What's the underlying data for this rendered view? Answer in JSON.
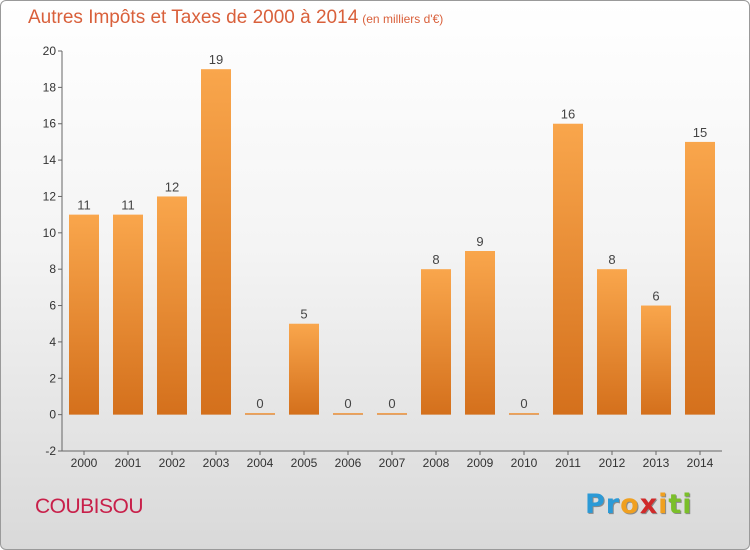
{
  "chart_data": {
    "type": "bar",
    "title": "Autres Impôts et Taxes de 2000 à 2014",
    "subtitle": "(en milliers d'€)",
    "categories": [
      "2000",
      "2001",
      "2002",
      "2003",
      "2004",
      "2005",
      "2006",
      "2007",
      "2008",
      "2009",
      "2010",
      "2011",
      "2012",
      "2013",
      "2014"
    ],
    "values": [
      11,
      11,
      12,
      19,
      0,
      5,
      0,
      0,
      8,
      9,
      0,
      16,
      8,
      6,
      15
    ],
    "ylim": [
      -2,
      20
    ],
    "yticks": [
      -2,
      0,
      2,
      4,
      6,
      8,
      10,
      12,
      14,
      16,
      18,
      20
    ],
    "grid": false,
    "bar_color": "#f08a2c"
  },
  "footer": {
    "commune": "COUBISOU",
    "logo_letters": [
      "P",
      "r",
      "o",
      "x",
      "i",
      "t",
      "i"
    ],
    "logo_colors": [
      "#2c9ad6",
      "#2c9ad6",
      "#f0a020",
      "#d02a2a",
      "#f0a020",
      "#7bbf2a",
      "#7bbf2a"
    ]
  }
}
